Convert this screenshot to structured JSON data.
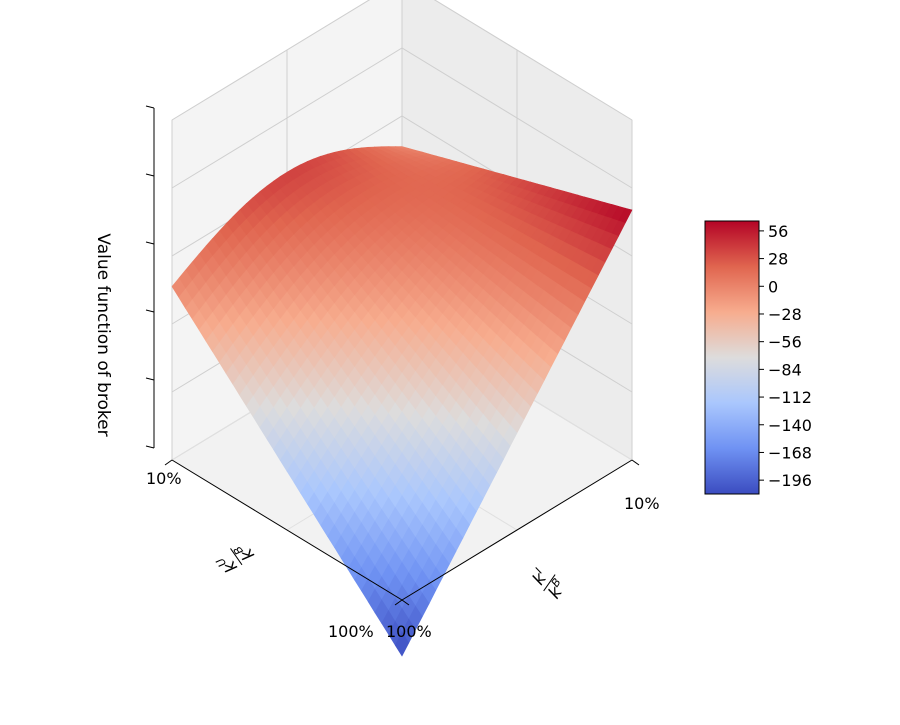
{
  "chart_data": {
    "type": "surface3d",
    "zlabel": "Value function of broker",
    "xlabel": "k^I / k^B",
    "ylabel": "k^U / k^B",
    "x_ticks": [
      "10%",
      "100%"
    ],
    "y_ticks": [
      "10%",
      "100%"
    ],
    "x_range": [
      0.1,
      1.0
    ],
    "y_range": [
      0.1,
      1.0
    ],
    "colormap": "coolwarm",
    "colorbar": {
      "ticks": [
        56,
        28,
        0,
        -28,
        -56,
        -84,
        -112,
        -140,
        -168,
        -196
      ],
      "range": [
        -210,
        66
      ],
      "colors": [
        "#3b4cc0",
        "#6f92f3",
        "#aac7fd",
        "#dddcdc",
        "#f7ac8e",
        "#e0654f",
        "#b40426"
      ]
    },
    "surface_samples": [
      {
        "x": 0.1,
        "y": 0.1,
        "z": -3
      },
      {
        "x": 1.0,
        "y": 0.1,
        "z": -3
      },
      {
        "x": 0.1,
        "y": 1.0,
        "z": 66
      },
      {
        "x": 1.0,
        "y": 1.0,
        "z": -210
      }
    ],
    "grid": true,
    "colorbar_placement": "right"
  },
  "labels": {
    "zlabel": "Value function of broker",
    "x_main": "k",
    "x_main_sup": "I",
    "x_den": "k",
    "x_den_sup": "B",
    "y_main": "k",
    "y_main_sup": "U",
    "y_den": "k",
    "y_den_sup": "B"
  }
}
